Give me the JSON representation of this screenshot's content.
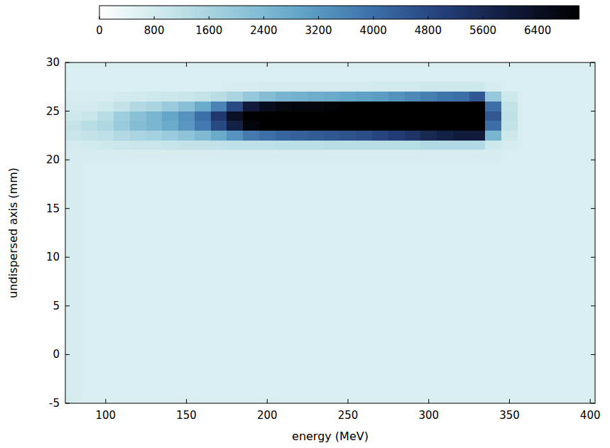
{
  "chart_data": {
    "type": "heatmap",
    "x_label": "energy (MeV)",
    "y_label": "undispersed axis (mm)",
    "xlim": [
      75,
      403
    ],
    "ylim": [
      -5,
      30
    ],
    "xticks": [
      100,
      150,
      200,
      250,
      300,
      350,
      400
    ],
    "yticks": [
      -5,
      0,
      5,
      10,
      15,
      20,
      25,
      30
    ],
    "x_edges": [
      75,
      85,
      95,
      105,
      115,
      125,
      135,
      145,
      155,
      165,
      175,
      185,
      195,
      205,
      215,
      225,
      235,
      245,
      255,
      265,
      275,
      285,
      295,
      305,
      315,
      325,
      335,
      345,
      355,
      365,
      375,
      385,
      395,
      403
    ],
    "y_edges": [
      -5,
      20,
      21,
      22,
      23,
      24,
      25,
      26,
      27,
      28,
      30
    ],
    "cells": [
      [
        750,
        700,
        700,
        700,
        700,
        700,
        700,
        700,
        700,
        700,
        700,
        700,
        700,
        700,
        700,
        700,
        700,
        700,
        700,
        700,
        700,
        700,
        700,
        700,
        700,
        700,
        700,
        700,
        700,
        700,
        700,
        700,
        700
      ],
      [
        750,
        750,
        750,
        750,
        750,
        750,
        750,
        750,
        750,
        750,
        750,
        750,
        750,
        750,
        750,
        750,
        750,
        750,
        750,
        750,
        750,
        750,
        750,
        750,
        750,
        750,
        750,
        700,
        700,
        700,
        700,
        700,
        700
      ],
      [
        800,
        850,
        900,
        950,
        1000,
        1000,
        1050,
        1100,
        1100,
        1150,
        1200,
        1200,
        1200,
        1250,
        1250,
        1250,
        1300,
        1300,
        1300,
        1300,
        1350,
        1350,
        1400,
        1400,
        1400,
        1400,
        900,
        750,
        700,
        700,
        700,
        700,
        700
      ],
      [
        1000,
        1100,
        1200,
        1400,
        1600,
        1700,
        1900,
        2100,
        2400,
        2800,
        3300,
        3800,
        4000,
        4200,
        4300,
        4400,
        4500,
        4600,
        4700,
        4900,
        5100,
        5300,
        5600,
        5800,
        6000,
        6000,
        2500,
        900,
        700,
        700,
        700,
        700,
        700
      ],
      [
        1100,
        1300,
        1500,
        1900,
        2300,
        2500,
        2800,
        3200,
        3800,
        4800,
        5800,
        6800,
        7000,
        7000,
        7000,
        7000,
        7000,
        7000,
        7000,
        7000,
        7000,
        7000,
        7000,
        7000,
        7000,
        7000,
        4000,
        1100,
        700,
        700,
        700,
        700,
        700
      ],
      [
        900,
        1000,
        1300,
        1800,
        2200,
        2500,
        2900,
        3300,
        4000,
        5200,
        6400,
        7000,
        7000,
        7000,
        7000,
        7000,
        7000,
        7000,
        7000,
        7000,
        7000,
        7000,
        7000,
        7000,
        7000,
        7000,
        4500,
        1200,
        700,
        700,
        700,
        700,
        700
      ],
      [
        800,
        800,
        900,
        1100,
        1400,
        1600,
        1900,
        2200,
        2800,
        3600,
        4800,
        6000,
        6500,
        6700,
        6800,
        6800,
        6900,
        7000,
        7000,
        7000,
        7000,
        7000,
        7000,
        7000,
        7000,
        7000,
        4000,
        1100,
        700,
        700,
        700,
        700,
        700
      ],
      [
        750,
        750,
        750,
        800,
        850,
        900,
        950,
        1000,
        1100,
        1300,
        1600,
        2000,
        2300,
        2500,
        2600,
        2700,
        2800,
        2900,
        3000,
        3100,
        3300,
        3500,
        3700,
        3900,
        4000,
        4500,
        2000,
        900,
        700,
        700,
        700,
        700,
        700
      ],
      [
        700,
        700,
        700,
        700,
        700,
        700,
        700,
        700,
        700,
        700,
        750,
        750,
        800,
        800,
        800,
        800,
        800,
        800,
        800,
        850,
        850,
        850,
        900,
        900,
        900,
        900,
        750,
        700,
        700,
        700,
        700,
        700,
        700
      ],
      [
        700,
        700,
        700,
        700,
        700,
        700,
        700,
        700,
        700,
        700,
        700,
        700,
        700,
        700,
        700,
        700,
        700,
        700,
        700,
        700,
        700,
        700,
        700,
        700,
        700,
        700,
        700,
        700,
        700,
        700,
        700,
        700,
        700
      ]
    ],
    "colorbar_range": [
      0,
      7000
    ],
    "colorbar_ticks": [
      0,
      800,
      1600,
      2400,
      3200,
      4000,
      4800,
      5600,
      6400
    ]
  }
}
